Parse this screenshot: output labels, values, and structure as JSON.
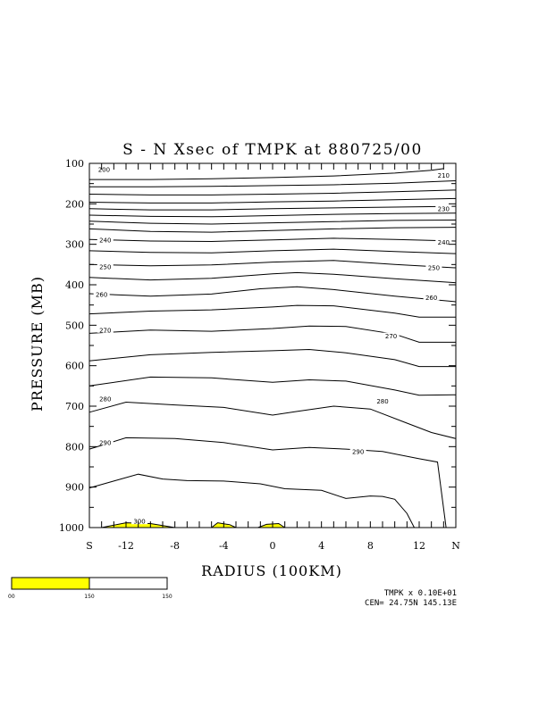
{
  "chart_data": {
    "type": "contour",
    "title": "S - N Xsec of TMPK at 880725/00",
    "xlabel": "RADIUS (100KM)",
    "ylabel": "PRESSURE (MB)",
    "xlim": [
      -15,
      15
    ],
    "ylim": [
      1000,
      100
    ],
    "x_ticks": [
      {
        "v": -15,
        "label": "S"
      },
      {
        "v": -12,
        "label": "-12"
      },
      {
        "v": -8,
        "label": "-8"
      },
      {
        "v": -4,
        "label": "-4"
      },
      {
        "v": 0,
        "label": "0"
      },
      {
        "v": 4,
        "label": "4"
      },
      {
        "v": 8,
        "label": "8"
      },
      {
        "v": 12,
        "label": "12"
      },
      {
        "v": 15,
        "label": "N"
      }
    ],
    "y_ticks": [
      100,
      200,
      300,
      400,
      500,
      600,
      700,
      800,
      900,
      1000
    ],
    "contour_labels": [
      {
        "text": "200",
        "x": -13.8,
        "y": 115
      },
      {
        "text": "210",
        "x": 14.0,
        "y": 130
      },
      {
        "text": "230",
        "x": 14.0,
        "y": 212
      },
      {
        "text": "240",
        "x": -13.7,
        "y": 290
      },
      {
        "text": "240",
        "x": 14.0,
        "y": 295
      },
      {
        "text": "250",
        "x": -13.7,
        "y": 356
      },
      {
        "text": "250",
        "x": 13.2,
        "y": 358
      },
      {
        "text": "260",
        "x": -14.0,
        "y": 424
      },
      {
        "text": "260",
        "x": 13.0,
        "y": 432
      },
      {
        "text": "270",
        "x": -13.7,
        "y": 512
      },
      {
        "text": "270",
        "x": 9.7,
        "y": 527
      },
      {
        "text": "280",
        "x": -13.7,
        "y": 682
      },
      {
        "text": "280",
        "x": 9.0,
        "y": 688
      },
      {
        "text": "290",
        "x": -13.7,
        "y": 790
      },
      {
        "text": "290",
        "x": 7.0,
        "y": 813
      },
      {
        "text": "300",
        "x": -10.9,
        "y": 985
      }
    ],
    "contours": [
      [
        [
          -15,
          140
        ],
        [
          -10,
          140
        ],
        [
          -5,
          138
        ],
        [
          0,
          135
        ],
        [
          5,
          131
        ],
        [
          10,
          124
        ],
        [
          13,
          117
        ],
        [
          14,
          113
        ]
      ],
      [
        [
          -15,
          158
        ],
        [
          -10,
          158
        ],
        [
          -5,
          157
        ],
        [
          0,
          155
        ],
        [
          5,
          153
        ],
        [
          10,
          149
        ],
        [
          15,
          143
        ]
      ],
      [
        [
          -15,
          176
        ],
        [
          -10,
          178
        ],
        [
          -5,
          178
        ],
        [
          0,
          176
        ],
        [
          5,
          174
        ],
        [
          10,
          170
        ],
        [
          15,
          166
        ]
      ],
      [
        [
          -15,
          196
        ],
        [
          -10,
          198
        ],
        [
          -5,
          198
        ],
        [
          0,
          195
        ],
        [
          5,
          193
        ],
        [
          10,
          190
        ],
        [
          15,
          187
        ]
      ],
      [
        [
          -15,
          212
        ],
        [
          -10,
          215
        ],
        [
          -5,
          215
        ],
        [
          0,
          212
        ],
        [
          5,
          210
        ],
        [
          10,
          208
        ],
        [
          15,
          206
        ]
      ],
      [
        [
          -15,
          228
        ],
        [
          -10,
          231
        ],
        [
          -5,
          232
        ],
        [
          0,
          229
        ],
        [
          5,
          226
        ],
        [
          10,
          224
        ],
        [
          15,
          223
        ]
      ],
      [
        [
          -15,
          243
        ],
        [
          -10,
          248
        ],
        [
          -5,
          250
        ],
        [
          0,
          247
        ],
        [
          5,
          244
        ],
        [
          10,
          241
        ],
        [
          15,
          240
        ]
      ],
      [
        [
          -15,
          262
        ],
        [
          -10,
          268
        ],
        [
          -5,
          270
        ],
        [
          0,
          266
        ],
        [
          5,
          262
        ],
        [
          10,
          259
        ],
        [
          15,
          258
        ]
      ],
      [
        [
          -15,
          288
        ],
        [
          -10,
          292
        ],
        [
          -5,
          293
        ],
        [
          0,
          289
        ],
        [
          5,
          285
        ],
        [
          10,
          288
        ],
        [
          15,
          292
        ]
      ],
      [
        [
          -15,
          316
        ],
        [
          -10,
          320
        ],
        [
          -5,
          321
        ],
        [
          0,
          316
        ],
        [
          5,
          312
        ],
        [
          10,
          318
        ],
        [
          15,
          323
        ]
      ],
      [
        [
          -15,
          350
        ],
        [
          -10,
          353
        ],
        [
          -5,
          351
        ],
        [
          0,
          344
        ],
        [
          5,
          340
        ],
        [
          10,
          350
        ],
        [
          15,
          358
        ]
      ],
      [
        [
          -15,
          382
        ],
        [
          -10,
          388
        ],
        [
          -5,
          384
        ],
        [
          0,
          373
        ],
        [
          2,
          370
        ],
        [
          5,
          374
        ],
        [
          10,
          385
        ],
        [
          15,
          395
        ]
      ],
      [
        [
          -15,
          422
        ],
        [
          -10,
          428
        ],
        [
          -5,
          423
        ],
        [
          -1,
          410
        ],
        [
          2,
          405
        ],
        [
          5,
          412
        ],
        [
          10,
          428
        ],
        [
          15,
          442
        ]
      ],
      [
        [
          -15,
          472
        ],
        [
          -10,
          465
        ],
        [
          -5,
          462
        ],
        [
          0,
          455
        ],
        [
          2,
          451
        ],
        [
          5,
          452
        ],
        [
          10,
          470
        ],
        [
          12,
          480
        ],
        [
          15,
          480
        ]
      ],
      [
        [
          -15,
          520
        ],
        [
          -10,
          512
        ],
        [
          -5,
          515
        ],
        [
          0,
          508
        ],
        [
          3,
          502
        ],
        [
          6,
          503
        ],
        [
          10,
          522
        ],
        [
          12,
          542
        ],
        [
          15,
          542
        ]
      ],
      [
        [
          -15,
          588
        ],
        [
          -10,
          573
        ],
        [
          -5,
          567
        ],
        [
          0,
          563
        ],
        [
          3,
          560
        ],
        [
          6,
          568
        ],
        [
          10,
          585
        ],
        [
          12,
          602
        ],
        [
          15,
          602
        ]
      ],
      [
        [
          -15,
          650
        ],
        [
          -10,
          628
        ],
        [
          -5,
          630
        ],
        [
          0,
          641
        ],
        [
          3,
          635
        ],
        [
          6,
          638
        ],
        [
          10,
          660
        ],
        [
          12,
          673
        ],
        [
          15,
          672
        ]
      ],
      [
        [
          -15,
          715
        ],
        [
          -12,
          690
        ],
        [
          -8,
          697
        ],
        [
          -4,
          703
        ],
        [
          0,
          722
        ],
        [
          2,
          713
        ],
        [
          5,
          700
        ],
        [
          8,
          707
        ],
        [
          11,
          742
        ],
        [
          13,
          765
        ],
        [
          15,
          780
        ]
      ],
      [
        [
          -15,
          806
        ],
        [
          -12,
          778
        ],
        [
          -8,
          780
        ],
        [
          -4,
          790
        ],
        [
          0,
          808
        ],
        [
          3,
          802
        ],
        [
          6,
          806
        ],
        [
          9,
          812
        ],
        [
          12,
          830
        ],
        [
          13.5,
          838
        ],
        [
          14.2,
          1000
        ]
      ],
      [
        [
          -15,
          902
        ],
        [
          -13,
          885
        ],
        [
          -11,
          868
        ],
        [
          -9,
          880
        ],
        [
          -7,
          884
        ],
        [
          -4,
          885
        ],
        [
          -1,
          892
        ],
        [
          1,
          904
        ],
        [
          4,
          908
        ],
        [
          6,
          928
        ],
        [
          8,
          922
        ],
        [
          9,
          923
        ],
        [
          10,
          930
        ],
        [
          11,
          965
        ],
        [
          11.6,
          1000
        ]
      ],
      [
        [
          -14,
          1000
        ],
        [
          -12,
          988
        ],
        [
          -10,
          990
        ],
        [
          -8,
          1000
        ]
      ],
      [
        [
          -5,
          1000
        ],
        [
          -4.5,
          988
        ],
        [
          -3.5,
          993
        ],
        [
          -3,
          1000
        ]
      ],
      [
        [
          -1.2,
          1000
        ],
        [
          -0.5,
          992
        ],
        [
          0.5,
          990
        ],
        [
          1,
          1000
        ]
      ]
    ],
    "shading": {
      "above": 300,
      "color": "#ffff00"
    },
    "colorbar": {
      "labels": [
        "00",
        "150",
        "150"
      ],
      "fill_color": "#ffff00"
    },
    "info_line1": "TMPK x  0.10E+01",
    "info_line2": "CEN= 24.75N  145.13E"
  }
}
